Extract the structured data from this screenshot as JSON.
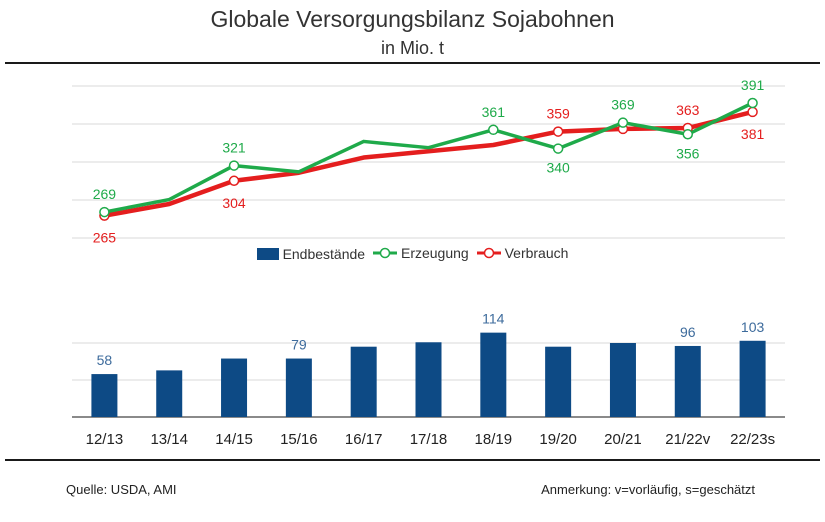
{
  "header": {
    "title": "Globale Versorgungsbilanz Sojabohnen",
    "subtitle": "in Mio. t"
  },
  "footer": {
    "source": "Quelle: USDA, AMI",
    "note": "Anmerkung: v=vorläufig, s=geschätzt"
  },
  "colors": {
    "production": "#1faa4a",
    "consumption": "#e41e1e",
    "stocks": "#0d4a85",
    "stock_label": "#3d6b9c",
    "grid": "#d9d9d9"
  },
  "chart_data": [
    {
      "type": "line",
      "categories": [
        "12/13",
        "13/14",
        "14/15",
        "15/16",
        "16/17",
        "17/18",
        "18/19",
        "19/20",
        "20/21",
        "21/22v",
        "22/23s"
      ],
      "series": [
        {
          "name": "Erzeugung",
          "values": [
            269,
            283,
            321,
            314,
            348,
            341,
            361,
            340,
            369,
            356,
            391
          ],
          "labels": {
            "0": "269",
            "2": "321",
            "6": "361",
            "7": "340",
            "8": "369",
            "9": "356",
            "10": "391"
          },
          "markers": [
            0,
            2,
            6,
            7,
            8,
            9,
            10
          ]
        },
        {
          "name": "Verbrauch",
          "values": [
            265,
            278,
            304,
            313,
            330,
            337,
            344,
            359,
            362,
            363,
            381
          ],
          "labels": {
            "0": "265",
            "2": "304",
            "7": "359",
            "9": "363",
            "10": "381"
          },
          "markers": [
            0,
            2,
            7,
            8,
            9,
            10
          ]
        }
      ],
      "ylim": [
        240,
        410
      ],
      "grid": true
    },
    {
      "type": "bar",
      "categories": [
        "12/13",
        "13/14",
        "14/15",
        "15/16",
        "16/17",
        "17/18",
        "18/19",
        "19/20",
        "20/21",
        "21/22v",
        "22/23s"
      ],
      "series": [
        {
          "name": "Endbestände",
          "values": [
            58,
            63,
            79,
            79,
            95,
            101,
            114,
            95,
            100,
            96,
            103
          ],
          "labels": {
            "0": "58",
            "3": "79",
            "6": "114",
            "9": "96",
            "10": "103"
          }
        }
      ],
      "ylim": [
        0,
        150
      ],
      "grid": true
    }
  ]
}
